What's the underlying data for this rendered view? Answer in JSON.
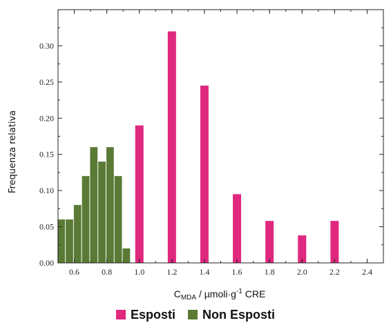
{
  "chart_data": {
    "type": "bar",
    "ylabel": "Frequenza relativa",
    "xlabel_main": "C",
    "xlabel_sub": "MDA",
    "xlabel_mid": " / µmoli·g",
    "xlabel_sup": "-1",
    "xlabel_end": " CRE",
    "xlim": [
      0.5,
      2.5
    ],
    "ylim": [
      0.0,
      0.35
    ],
    "x_ticks": [
      0.6,
      0.8,
      1.0,
      1.2,
      1.4,
      1.6,
      1.8,
      2.0,
      2.2,
      2.4
    ],
    "x_tick_labels": [
      "0.6",
      "0.8",
      "1.0",
      "1.2",
      "1.4",
      "1.6",
      "1.8",
      "2.0",
      "2.2",
      "2.4"
    ],
    "y_ticks": [
      0.0,
      0.05,
      0.1,
      0.15,
      0.2,
      0.25,
      0.3
    ],
    "y_tick_labels": [
      "0.00",
      "0.05",
      "0.10",
      "0.15",
      "0.20",
      "0.25",
      "0.30"
    ],
    "series": [
      {
        "name": "Esposti",
        "color": "#e0287e",
        "x": [
          1.0,
          1.2,
          1.4,
          1.6,
          1.8,
          2.0,
          2.2
        ],
        "values": [
          0.19,
          0.32,
          0.245,
          0.095,
          0.058,
          0.038,
          0.058
        ]
      },
      {
        "name": "Non Esposti",
        "color": "#5a7a35",
        "x": [
          0.52,
          0.57,
          0.62,
          0.67,
          0.72,
          0.77,
          0.82,
          0.87,
          0.92
        ],
        "values": [
          0.06,
          0.06,
          0.08,
          0.12,
          0.16,
          0.14,
          0.16,
          0.12,
          0.02
        ]
      }
    ]
  }
}
